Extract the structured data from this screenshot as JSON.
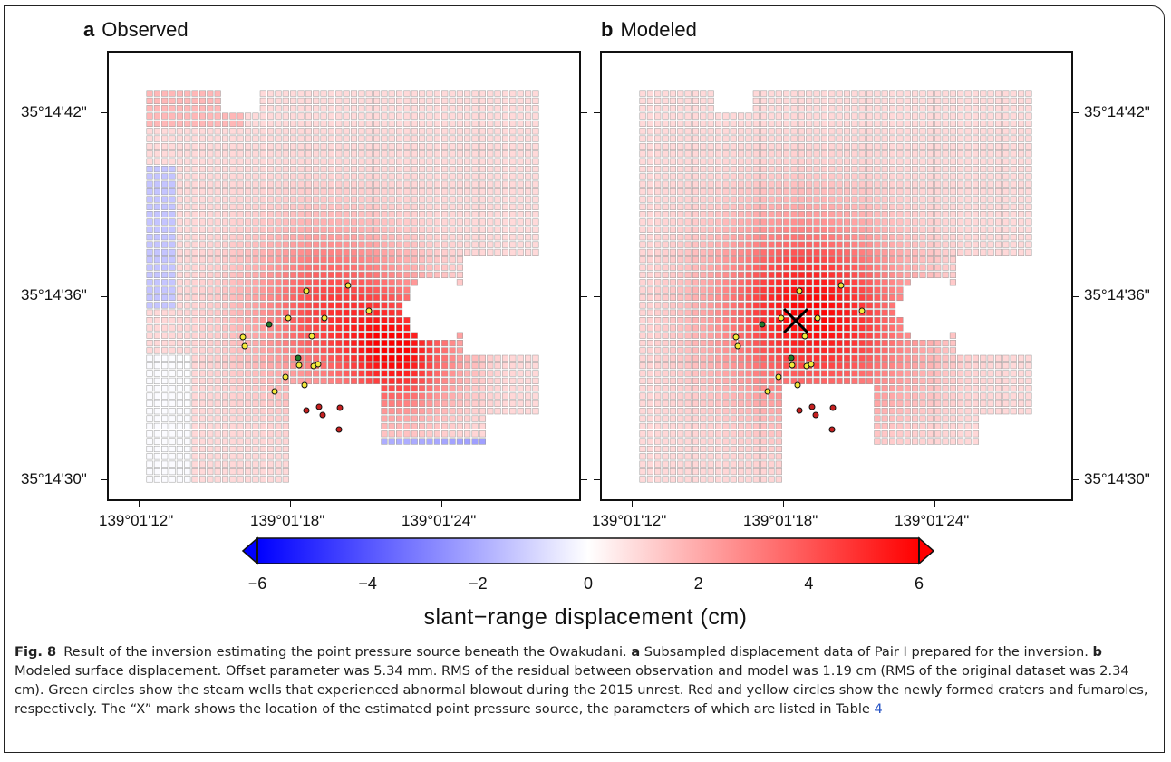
{
  "panels": {
    "a": {
      "letter": "a",
      "title": "Observed"
    },
    "b": {
      "letter": "b",
      "title": "Modeled"
    }
  },
  "lat_ticks": [
    "35°14'42\"",
    "35°14'36\"",
    "35°14'30\""
  ],
  "lon_ticks": [
    "139°01'12\"",
    "139°01'18\"",
    "139°01'24\""
  ],
  "colorbar": {
    "title": "slant−range displacement  (cm)",
    "ticks": [
      "−6",
      "−4",
      "−2",
      "0",
      "2",
      "4",
      "6"
    ],
    "min": -6,
    "max": 6,
    "colors": [
      "#0000ff",
      "#ffffff",
      "#ff0000"
    ]
  },
  "markers": {
    "green_color": "#1f7a2a",
    "red_color": "#c62020",
    "yellow_color": "#f3ea3c",
    "source_mark": "X"
  },
  "caption": {
    "label": "Fig. 8",
    "p1": "Result of the inversion estimating the point pressure source beneath the Owakudani. ",
    "a_bold": "a",
    "p2": " Subsampled displacement data of Pair I prepared for the inversion. ",
    "b_bold": "b",
    "p3": " Modeled surface displacement. Offset parameter was 5.34 mm. RMS of the residual between observation and model was 1.19 cm (RMS of the original dataset was 2.34 cm). Green circles show the steam wells that experienced abnormal blowout during the 2015 unrest. Red and yellow circles show the newly formed craters and fumaroles, respectively. The “X” mark shows the location of the estimated point pressure source, the parameters of which are listed in Table ",
    "table_ref": "4"
  }
}
